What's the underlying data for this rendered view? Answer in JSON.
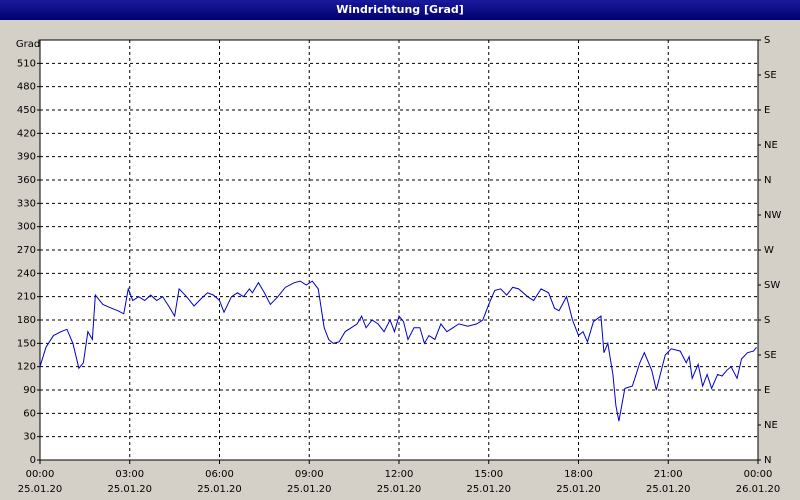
{
  "chart_data": {
    "type": "line",
    "title": "Windrichtung [Grad]",
    "y_label": "Grad",
    "xlim": [
      0,
      24
    ],
    "xticks": [
      {
        "value": 0,
        "label": "00:00",
        "date": "25.01.20"
      },
      {
        "value": 3,
        "label": "03:00",
        "date": "25.01.20"
      },
      {
        "value": 6,
        "label": "06:00",
        "date": "25.01.20"
      },
      {
        "value": 9,
        "label": "09:00",
        "date": "25.01.20"
      },
      {
        "value": 12,
        "label": "12:00",
        "date": "25.01.20"
      },
      {
        "value": 15,
        "label": "15:00",
        "date": "25.01.20"
      },
      {
        "value": 18,
        "label": "18:00",
        "date": "25.01.20"
      },
      {
        "value": 21,
        "label": "21:00",
        "date": "25.01.20"
      },
      {
        "value": 24,
        "label": "00:00",
        "date": "26.01.20"
      }
    ],
    "ylim": [
      0,
      540
    ],
    "yticks": [
      0,
      30,
      60,
      90,
      120,
      150,
      180,
      210,
      240,
      270,
      300,
      330,
      360,
      390,
      420,
      450,
      480,
      510
    ],
    "y2lim": [
      0,
      540
    ],
    "y2ticks": [
      {
        "value": 0,
        "label": "N"
      },
      {
        "value": 45,
        "label": "NE"
      },
      {
        "value": 90,
        "label": "E"
      },
      {
        "value": 135,
        "label": "SE"
      },
      {
        "value": 180,
        "label": "S"
      },
      {
        "value": 225,
        "label": "SW"
      },
      {
        "value": 270,
        "label": "W"
      },
      {
        "value": 315,
        "label": "NW"
      },
      {
        "value": 360,
        "label": "N"
      },
      {
        "value": 405,
        "label": "NE"
      },
      {
        "value": 450,
        "label": "E"
      },
      {
        "value": 495,
        "label": "SE"
      },
      {
        "value": 540,
        "label": "S"
      }
    ],
    "grid": true,
    "series": [
      {
        "name": "Windrichtung",
        "color": "#0000cc",
        "x": [
          0,
          0.2,
          0.45,
          0.7,
          0.9,
          1.1,
          1.3,
          1.45,
          1.6,
          1.75,
          1.85,
          2.1,
          2.4,
          2.6,
          2.8,
          2.95,
          3.1,
          3.3,
          3.5,
          3.7,
          3.9,
          4.1,
          4.3,
          4.5,
          4.65,
          4.9,
          5.15,
          5.4,
          5.6,
          5.8,
          6.0,
          6.15,
          6.4,
          6.6,
          6.8,
          7.0,
          7.1,
          7.3,
          7.5,
          7.7,
          7.95,
          8.2,
          8.5,
          8.7,
          8.9,
          9.1,
          9.3,
          9.5,
          9.65,
          9.8,
          10.0,
          10.2,
          10.4,
          10.6,
          10.75,
          10.9,
          11.1,
          11.3,
          11.5,
          11.7,
          11.85,
          12.0,
          12.15,
          12.3,
          12.5,
          12.7,
          12.85,
          13.0,
          13.2,
          13.4,
          13.6,
          13.8,
          14.0,
          14.3,
          14.6,
          14.8,
          15.0,
          15.2,
          15.4,
          15.6,
          15.8,
          16.0,
          16.3,
          16.5,
          16.75,
          17.0,
          17.2,
          17.35,
          17.6,
          17.8,
          18.0,
          18.15,
          18.3,
          18.5,
          18.75,
          18.85,
          18.98,
          19.15,
          19.25,
          19.35,
          19.55,
          19.8,
          20.05,
          20.2,
          20.45,
          20.6,
          20.9,
          21.1,
          21.4,
          21.6,
          21.7,
          21.8,
          22.0,
          22.15,
          22.3,
          22.45,
          22.65,
          22.8,
          22.95,
          23.1,
          23.3,
          23.45,
          23.65,
          23.85,
          23.95
        ],
        "values": [
          120,
          145,
          160,
          165,
          168,
          150,
          118,
          125,
          165,
          155,
          212,
          200,
          195,
          192,
          188,
          220,
          205,
          210,
          205,
          212,
          205,
          210,
          198,
          185,
          220,
          210,
          198,
          208,
          215,
          212,
          205,
          190,
          210,
          215,
          210,
          220,
          215,
          228,
          215,
          200,
          210,
          222,
          228,
          230,
          225,
          230,
          220,
          170,
          155,
          150,
          152,
          165,
          170,
          175,
          185,
          170,
          180,
          175,
          165,
          180,
          165,
          185,
          178,
          155,
          170,
          170,
          150,
          160,
          155,
          175,
          165,
          170,
          175,
          172,
          175,
          180,
          200,
          218,
          220,
          212,
          222,
          220,
          210,
          205,
          220,
          215,
          195,
          192,
          210,
          180,
          160,
          165,
          152,
          178,
          185,
          138,
          150,
          110,
          70,
          50,
          92,
          95,
          125,
          138,
          115,
          90,
          135,
          143,
          140,
          125,
          133,
          105,
          123,
          95,
          110,
          92,
          110,
          108,
          115,
          120,
          105,
          130,
          138,
          140,
          145
        ]
      }
    ]
  }
}
